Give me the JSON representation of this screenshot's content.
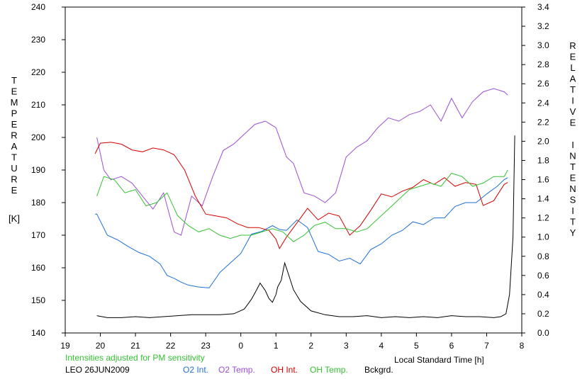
{
  "chart_data": {
    "type": "line",
    "xlabel": "Local Standard Time [h]",
    "x_ticks": [
      "19",
      "20",
      "21",
      "22",
      "23",
      "0",
      "1",
      "2",
      "3",
      "4",
      "5",
      "6",
      "7",
      "8"
    ],
    "xlim": [
      19,
      32
    ],
    "y_left": {
      "label_letters": [
        "T",
        "E",
        "M",
        "P",
        "E",
        "R",
        "A",
        "T",
        "U",
        "R",
        "E"
      ],
      "unit": "[K]",
      "ylim": [
        140,
        240
      ],
      "ticks": [
        "140",
        "150",
        "160",
        "170",
        "180",
        "190",
        "200",
        "210",
        "220",
        "230",
        "240"
      ]
    },
    "y_right": {
      "label_words": [
        [
          "R",
          "E",
          "L",
          "A",
          "T",
          "I",
          "V",
          "E"
        ],
        [
          "I",
          "N",
          "T",
          "E",
          "N",
          "S",
          "I",
          "T",
          "Y"
        ]
      ],
      "ylim": [
        0,
        3.4
      ],
      "ticks": [
        "0.0",
        "0.2",
        "0.4",
        "0.6",
        "0.8",
        "1.0",
        "1.2",
        "1.4",
        "1.6",
        "1.8",
        "2.0",
        "2.2",
        "2.4",
        "2.6",
        "2.8",
        "3.0",
        "3.2",
        "3.4"
      ]
    },
    "note": "Intensities adjusted for PM sensitivity",
    "station_date": "LEO 26JUN2009",
    "series": [
      {
        "name": "O2 Int.",
        "axis": "right",
        "color": "#1f6fd6",
        "x": [
          19.85,
          19.9,
          20.2,
          20.5,
          20.8,
          21.1,
          21.4,
          21.7,
          21.9,
          22.1,
          22.3,
          22.5,
          22.8,
          23.1,
          23.4,
          23.7,
          24.0,
          24.3,
          24.6,
          24.9,
          25.1,
          25.3,
          25.6,
          25.9,
          26.2,
          26.5,
          26.8,
          27.1,
          27.4,
          27.7,
          28.0,
          28.3,
          28.6,
          28.9,
          29.2,
          29.5,
          29.8,
          30.1,
          30.4,
          30.7,
          31.0,
          31.3,
          31.5,
          31.6
        ],
        "y": [
          1.24,
          1.24,
          1.02,
          0.97,
          0.9,
          0.84,
          0.8,
          0.72,
          0.6,
          0.57,
          0.53,
          0.5,
          0.48,
          0.47,
          0.63,
          0.73,
          0.83,
          1.03,
          1.06,
          1.12,
          1.08,
          1.07,
          1.18,
          1.1,
          0.85,
          0.82,
          0.75,
          0.78,
          0.72,
          0.87,
          0.93,
          1.02,
          1.07,
          1.16,
          1.13,
          1.2,
          1.2,
          1.32,
          1.36,
          1.36,
          1.45,
          1.53,
          1.6,
          1.62
        ]
      },
      {
        "name": "O2 Temp.",
        "axis": "left",
        "color": "#9b4fd0",
        "x": [
          19.9,
          20.1,
          20.3,
          20.6,
          20.9,
          21.2,
          21.5,
          21.8,
          22.1,
          22.3,
          22.6,
          22.9,
          23.2,
          23.5,
          23.8,
          24.1,
          24.4,
          24.7,
          25.0,
          25.3,
          25.5,
          25.8,
          26.1,
          26.4,
          26.7,
          27.0,
          27.3,
          27.6,
          27.9,
          28.2,
          28.5,
          28.8,
          29.1,
          29.4,
          29.7,
          30.0,
          30.3,
          30.6,
          30.9,
          31.2,
          31.5,
          31.6
        ],
        "y": [
          200,
          190,
          187,
          188,
          186,
          182,
          178,
          183,
          171,
          170,
          182,
          179,
          188,
          196,
          198,
          201,
          204,
          205,
          203,
          194,
          192,
          183,
          182,
          180,
          183,
          194,
          197,
          199,
          203,
          206,
          205,
          207,
          208,
          210,
          205,
          212,
          206,
          211,
          214,
          215,
          214,
          213
        ]
      },
      {
        "name": "OH Int.",
        "axis": "right",
        "color": "#d40000",
        "x": [
          19.85,
          20.0,
          20.3,
          20.6,
          20.9,
          21.2,
          21.5,
          21.8,
          22.1,
          22.4,
          22.7,
          23.0,
          23.3,
          23.6,
          23.9,
          24.2,
          24.5,
          24.8,
          25.0,
          25.1,
          25.3,
          25.6,
          25.9,
          26.2,
          26.5,
          26.8,
          27.1,
          27.4,
          27.7,
          28.0,
          28.3,
          28.6,
          28.9,
          29.2,
          29.5,
          29.8,
          30.1,
          30.4,
          30.7,
          30.9,
          31.2,
          31.5,
          31.6
        ],
        "y": [
          1.87,
          1.98,
          1.99,
          1.97,
          1.91,
          1.89,
          1.93,
          1.91,
          1.86,
          1.7,
          1.43,
          1.24,
          1.22,
          1.2,
          1.14,
          1.1,
          1.1,
          1.07,
          0.98,
          0.88,
          1.0,
          1.15,
          1.3,
          1.18,
          1.25,
          1.22,
          1.02,
          1.12,
          1.28,
          1.45,
          1.42,
          1.48,
          1.52,
          1.6,
          1.55,
          1.62,
          1.53,
          1.57,
          1.55,
          1.33,
          1.38,
          1.55,
          1.57
        ]
      },
      {
        "name": "OH Temp.",
        "axis": "left",
        "color": "#33c233",
        "x": [
          19.9,
          20.1,
          20.4,
          20.7,
          21.0,
          21.3,
          21.6,
          21.9,
          22.2,
          22.5,
          22.8,
          23.1,
          23.4,
          23.7,
          24.0,
          24.3,
          24.6,
          24.9,
          25.2,
          25.5,
          25.8,
          26.1,
          26.4,
          26.7,
          27.0,
          27.3,
          27.6,
          27.9,
          28.2,
          28.5,
          28.8,
          29.1,
          29.4,
          29.7,
          30.0,
          30.3,
          30.6,
          30.9,
          31.2,
          31.5,
          31.6
        ],
        "y": [
          182,
          188,
          187,
          183,
          184,
          179,
          180,
          183,
          176,
          173,
          171,
          172,
          170,
          169,
          170,
          170,
          171,
          172,
          171,
          168,
          170,
          173,
          174,
          172,
          172,
          171,
          172,
          175,
          178,
          181,
          184,
          185,
          186,
          185,
          189,
          188,
          185,
          186,
          188,
          188,
          190
        ]
      },
      {
        "name": "Bckgrd.",
        "axis": "right",
        "color": "#000000",
        "x": [
          19.9,
          20.2,
          20.6,
          21.0,
          21.4,
          21.8,
          22.2,
          22.6,
          23.0,
          23.4,
          23.8,
          24.1,
          24.3,
          24.45,
          24.55,
          24.7,
          24.8,
          24.9,
          25.0,
          25.05,
          25.15,
          25.25,
          25.35,
          25.5,
          25.7,
          26.0,
          26.4,
          26.8,
          27.2,
          27.6,
          28.0,
          28.4,
          28.8,
          29.2,
          29.6,
          30.0,
          30.4,
          30.8,
          31.2,
          31.4,
          31.55,
          31.65,
          31.75,
          31.8
        ],
        "y": [
          0.18,
          0.16,
          0.16,
          0.17,
          0.16,
          0.17,
          0.18,
          0.19,
          0.19,
          0.19,
          0.2,
          0.25,
          0.35,
          0.45,
          0.52,
          0.44,
          0.36,
          0.32,
          0.4,
          0.48,
          0.55,
          0.73,
          0.62,
          0.45,
          0.33,
          0.23,
          0.19,
          0.17,
          0.17,
          0.18,
          0.16,
          0.17,
          0.16,
          0.17,
          0.16,
          0.18,
          0.17,
          0.17,
          0.16,
          0.17,
          0.2,
          0.4,
          1.0,
          2.06
        ]
      }
    ]
  }
}
